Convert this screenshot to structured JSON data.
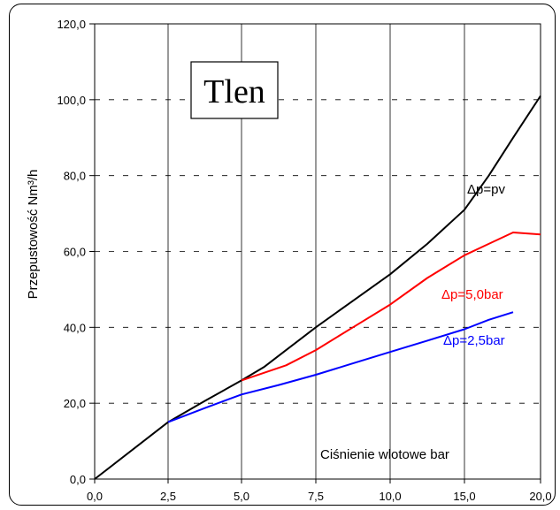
{
  "chart_data": {
    "type": "line",
    "title": "Tlen",
    "xlabel": "Ciśnienie wlotowe bar",
    "ylabel": "Przepustowość Nm³/h",
    "xlim": [
      0,
      20
    ],
    "ylim": [
      0,
      120
    ],
    "x_ticks": [
      "0,0",
      "2,5",
      "5,0",
      "7,5",
      "10,0",
      "15,0",
      "20,0"
    ],
    "y_ticks": [
      "0,0",
      "20,0",
      "40,0",
      "60,0",
      "80,0",
      "100,0",
      "120,0"
    ],
    "grid": "vertical solid, horizontal dashed",
    "series": [
      {
        "name": "Δp=pv",
        "color": "#000000",
        "points": [
          [
            0,
            0
          ],
          [
            2.5,
            15
          ],
          [
            3.75,
            20.6
          ],
          [
            5,
            26
          ],
          [
            5.75,
            29.5
          ],
          [
            6.5,
            34
          ],
          [
            7.5,
            40
          ],
          [
            8.75,
            47
          ],
          [
            10,
            54
          ],
          [
            11.25,
            62
          ],
          [
            12.5,
            71
          ],
          [
            13.75,
            80
          ],
          [
            15,
            90
          ],
          [
            16.25,
            101
          ]
        ]
      },
      {
        "name": "Δp=5,0bar",
        "color": "#ff0000",
        "points": [
          [
            5,
            26
          ],
          [
            6.5,
            30
          ],
          [
            7.5,
            34
          ],
          [
            8.75,
            40
          ],
          [
            10,
            46
          ],
          [
            11.25,
            53
          ],
          [
            12.5,
            59
          ],
          [
            13.75,
            62
          ],
          [
            15,
            65
          ],
          [
            16.25,
            64.5
          ]
        ]
      },
      {
        "name": "Δp=2,5bar",
        "color": "#0000ff",
        "points": [
          [
            2.5,
            15
          ],
          [
            3.75,
            18.7
          ],
          [
            5,
            22.3
          ],
          [
            6.25,
            24.8
          ],
          [
            7.5,
            27.5
          ],
          [
            8.75,
            30.5
          ],
          [
            10,
            33.5
          ],
          [
            11.25,
            36.5
          ],
          [
            12.5,
            39.5
          ],
          [
            13.75,
            42
          ],
          [
            15,
            44
          ]
        ]
      }
    ]
  }
}
